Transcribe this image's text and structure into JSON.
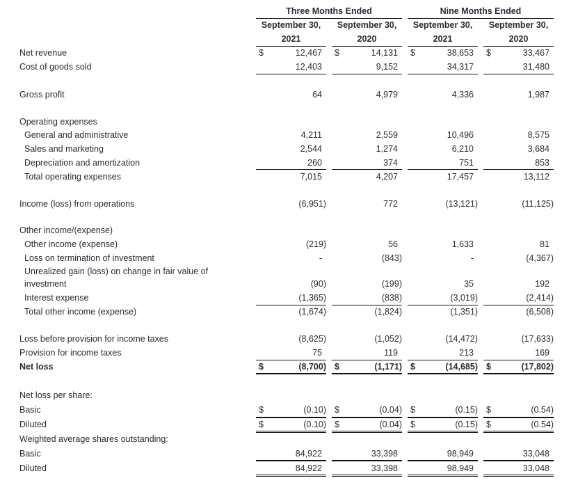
{
  "header": {
    "groups": [
      "Three Months Ended",
      "Nine Months Ended"
    ],
    "columns": [
      {
        "line1": "September 30,",
        "line2": "2021"
      },
      {
        "line1": "September 30,",
        "line2": "2020"
      },
      {
        "line1": "September 30,",
        "line2": "2021"
      },
      {
        "line1": "September 30,",
        "line2": "2020"
      }
    ]
  },
  "currency_symbol": "$",
  "rows": [
    {
      "label": "Net revenue",
      "values": [
        "12,467",
        "14,131",
        "38,653",
        "33,467"
      ],
      "dollar": true
    },
    {
      "label": "Cost of goods sold",
      "values": [
        "12,403",
        "9,152",
        "34,317",
        "31,480"
      ]
    },
    {
      "label": "Gross profit",
      "values": [
        "64",
        "4,979",
        "4,336",
        "1,987"
      ]
    },
    {
      "label": "Operating expenses",
      "values": []
    },
    {
      "label": "General and administrative",
      "indent": true,
      "values": [
        "4,211",
        "2,559",
        "10,496",
        "8,575"
      ]
    },
    {
      "label": "Sales and marketing",
      "indent": true,
      "values": [
        "2,544",
        "1,274",
        "6,210",
        "3,684"
      ]
    },
    {
      "label": "Depreciation and amortization",
      "indent": true,
      "values": [
        "260",
        "374",
        "751",
        "853"
      ]
    },
    {
      "label": "Total operating expenses",
      "indent": true,
      "values": [
        "7,015",
        "4,207",
        "17,457",
        "13,112"
      ]
    },
    {
      "label": "Income (loss) from operations",
      "values": [
        "(6,951)",
        "772",
        "(13,121)",
        "(11,125)"
      ]
    },
    {
      "label": "Other income/(expense)",
      "values": []
    },
    {
      "label": "Other income (expense)",
      "indent": true,
      "values": [
        "(219)",
        "56",
        "1,633",
        "81"
      ]
    },
    {
      "label": "Loss on termination of investment",
      "indent": true,
      "values": [
        "-",
        "(843)",
        "-",
        "(4,367)"
      ]
    },
    {
      "label": "Unrealized gain (loss) on change in fair value of",
      "indent": true,
      "values": []
    },
    {
      "label": "investment",
      "indent": true,
      "values": [
        "(90)",
        "(199)",
        "35",
        "192"
      ]
    },
    {
      "label": "Interest expense",
      "indent": true,
      "values": [
        "(1,365)",
        "(838)",
        "(3,019)",
        "(2,414)"
      ]
    },
    {
      "label": "Total other income (expense)",
      "indent": true,
      "values": [
        "(1,674)",
        "(1,824)",
        "(1,351)",
        "(6,508)"
      ]
    },
    {
      "label": "Loss before provision for income taxes",
      "values": [
        "(8,625)",
        "(1,052)",
        "(14,472)",
        "(17,633)"
      ]
    },
    {
      "label": "Provision for income taxes",
      "values": [
        "75",
        "119",
        "213",
        "169"
      ]
    },
    {
      "label": "Net loss",
      "bold": true,
      "values": [
        "(8,700)",
        "(1,171)",
        "(14,685)",
        "(17,802)"
      ],
      "dollar": true
    },
    {
      "label": "Net loss per share:",
      "values": []
    },
    {
      "label": "Basic",
      "values": [
        "(0.10)",
        "(0.04)",
        "(0.15)",
        "(0.54)"
      ],
      "dollar": true
    },
    {
      "label": "Diluted",
      "values": [
        "(0.10)",
        "(0.04)",
        "(0.15)",
        "(0.54)"
      ],
      "dollar": true
    },
    {
      "label": "Weighted average shares outstanding:",
      "values": []
    },
    {
      "label": "Basic",
      "values": [
        "84,922",
        "33,398",
        "98,949",
        "33,048"
      ]
    },
    {
      "label": "Diluted",
      "values": [
        "84,922",
        "33,398",
        "98,949",
        "33,048"
      ]
    }
  ]
}
